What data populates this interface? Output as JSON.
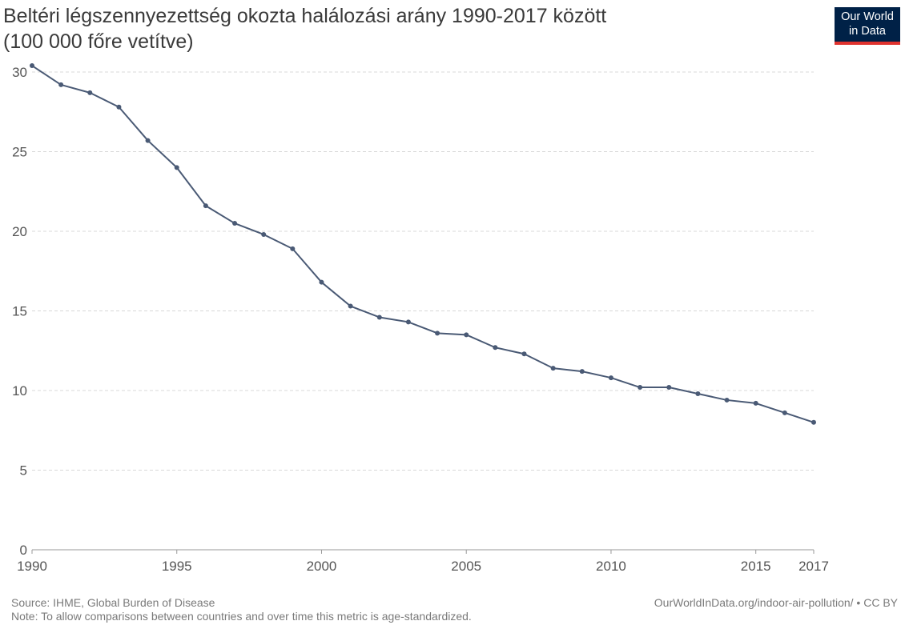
{
  "title": {
    "line1": "Beltéri légszennyezettség okozta halálozási arány 1990-2017 között",
    "line2": "(100 000 főre vetítve)"
  },
  "logo": {
    "line1": "Our World",
    "line2": "in Data",
    "bg_color": "#002147",
    "accent_color": "#e0332f"
  },
  "footer": {
    "source": "Source: IHME, Global Burden of Disease",
    "note": "Note: To allow comparisons between countries and over time this metric is age-standardized.",
    "url": "OurWorldInData.org/indoor-air-pollution/ • CC BY"
  },
  "chart_data": {
    "type": "line",
    "title": "Beltéri légszennyezettség okozta halálozási arány 1990-2017 között (100 000 főre vetítve)",
    "xlabel": "",
    "ylabel": "",
    "xlim": [
      1990,
      2017
    ],
    "ylim": [
      0,
      30
    ],
    "grid": true,
    "line_color": "#4a5a75",
    "x_ticks": [
      1990,
      1995,
      2000,
      2005,
      2010,
      2015,
      2017
    ],
    "y_ticks": [
      0,
      5,
      10,
      15,
      20,
      25,
      30
    ],
    "x": [
      1990,
      1991,
      1992,
      1993,
      1994,
      1995,
      1996,
      1997,
      1998,
      1999,
      2000,
      2001,
      2002,
      2003,
      2004,
      2005,
      2006,
      2007,
      2008,
      2009,
      2010,
      2011,
      2012,
      2013,
      2014,
      2015,
      2016,
      2017
    ],
    "series": [
      {
        "values": [
          30.4,
          29.2,
          28.7,
          27.8,
          25.7,
          24.0,
          21.6,
          20.5,
          19.8,
          18.9,
          16.8,
          15.3,
          14.6,
          14.3,
          13.6,
          13.5,
          12.7,
          12.3,
          11.4,
          11.2,
          10.8,
          10.2,
          10.2,
          9.8,
          9.4,
          9.2,
          8.6,
          8.0
        ]
      }
    ]
  }
}
